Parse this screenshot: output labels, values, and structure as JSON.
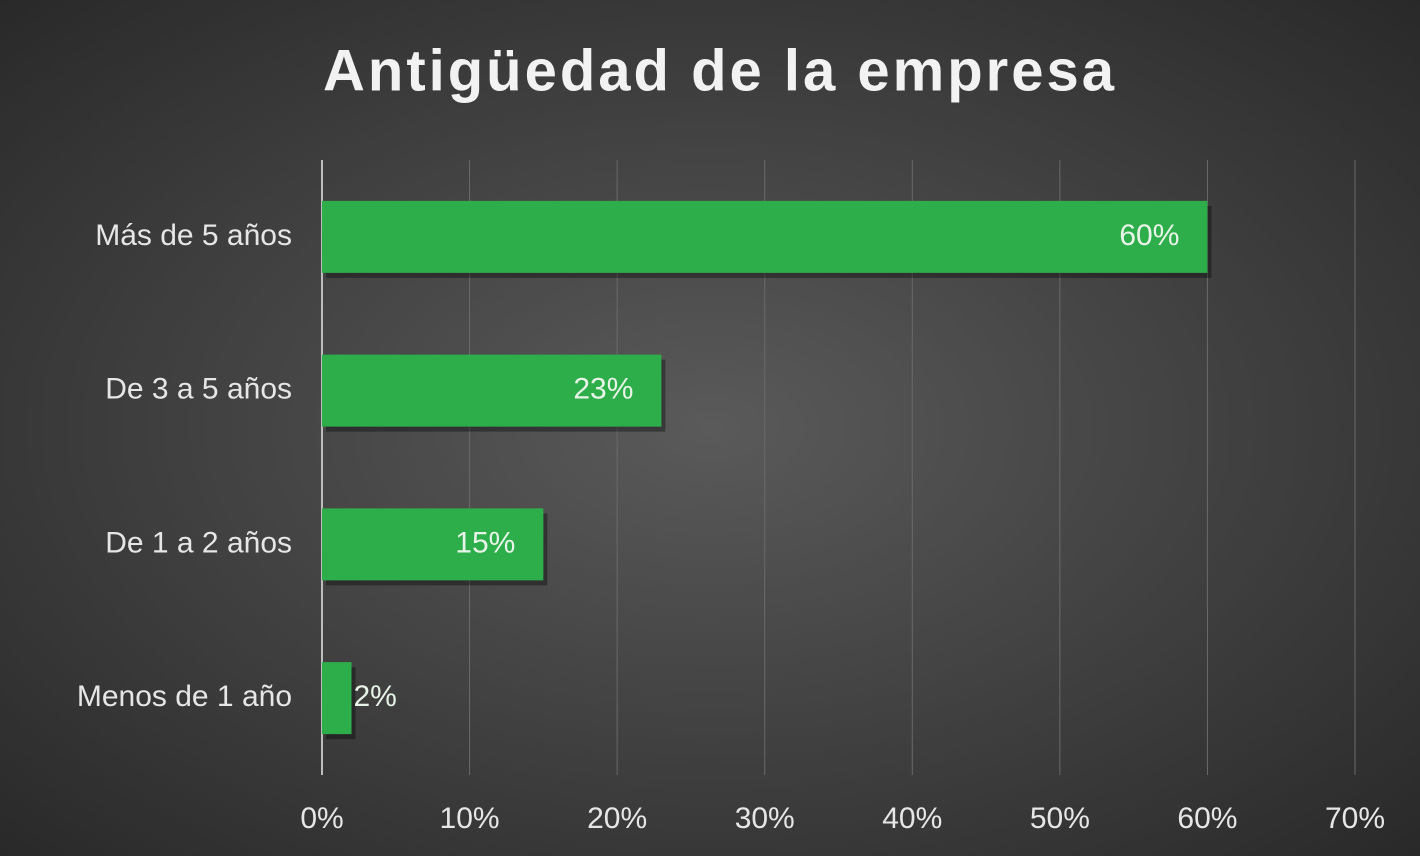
{
  "chart_data": {
    "type": "barh",
    "title": "Antigüedad de la empresa",
    "categories": [
      "Más de 5 años",
      "De 3 a 5 años",
      "De 1 a 2 años",
      "Menos de 1 año"
    ],
    "values": [
      60,
      23,
      15,
      2
    ],
    "value_labels": [
      "60%",
      "23%",
      "15%",
      "2%"
    ],
    "color": "#2eae4b",
    "xlim": [
      0,
      70
    ],
    "xticks": [
      {
        "value": 0,
        "label": "0%"
      },
      {
        "value": 10,
        "label": "10%"
      },
      {
        "value": 20,
        "label": "20%"
      },
      {
        "value": 30,
        "label": "30%"
      },
      {
        "value": 40,
        "label": "40%"
      },
      {
        "value": 50,
        "label": "50%"
      },
      {
        "value": 60,
        "label": "60%"
      },
      {
        "value": 70,
        "label": "70%"
      }
    ],
    "grid": true
  }
}
